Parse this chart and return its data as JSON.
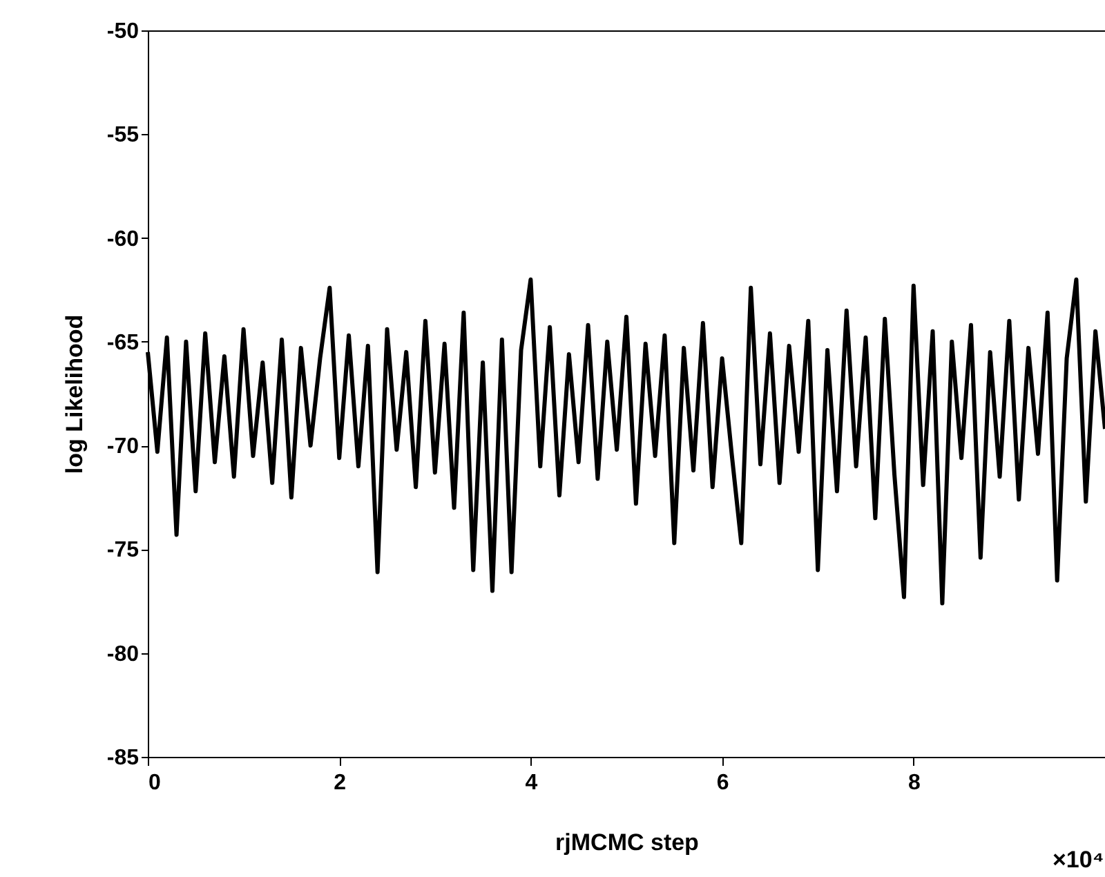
{
  "chart_data": {
    "type": "line",
    "xlabel": "rjMCMC step",
    "ylabel": "log Likelihood",
    "annotations": [
      "×10⁴"
    ],
    "x": [
      0,
      0.1,
      0.2,
      0.3,
      0.4,
      0.5,
      0.6,
      0.7,
      0.8,
      0.9,
      1.0,
      1.1,
      1.2,
      1.3,
      1.4,
      1.5,
      1.6,
      1.7,
      1.8,
      1.9,
      2.0,
      2.1,
      2.2,
      2.3,
      2.4,
      2.5,
      2.6,
      2.7,
      2.8,
      2.9,
      3.0,
      3.1,
      3.2,
      3.3,
      3.4,
      3.5,
      3.6,
      3.7,
      3.8,
      3.9,
      4.0,
      4.1,
      4.2,
      4.3,
      4.4,
      4.5,
      4.6,
      4.7,
      4.8,
      4.9,
      5.0,
      5.1,
      5.2,
      5.3,
      5.4,
      5.5,
      5.6,
      5.7,
      5.8,
      5.9,
      6.0,
      6.1,
      6.2,
      6.3,
      6.4,
      6.5,
      6.6,
      6.7,
      6.8,
      6.9,
      7.0,
      7.1,
      7.2,
      7.3,
      7.4,
      7.5,
      7.6,
      7.7,
      7.8,
      7.9,
      8.0,
      8.1,
      8.2,
      8.3,
      8.4,
      8.5,
      8.6,
      8.7,
      8.8,
      8.9,
      9.0,
      9.1,
      9.2,
      9.3,
      9.4,
      9.5,
      9.6,
      9.7,
      9.8,
      9.9,
      10.0
    ],
    "series": [
      {
        "color": "#000000",
        "values": [
          -65.5,
          -70.3,
          -64.8,
          -74.3,
          -65.0,
          -72.2,
          -64.6,
          -70.8,
          -65.7,
          -71.5,
          -64.4,
          -70.5,
          -66.0,
          -71.8,
          -64.9,
          -72.5,
          -65.3,
          -70.0,
          -65.8,
          -62.4,
          -70.6,
          -64.7,
          -71.0,
          -65.2,
          -76.1,
          -64.4,
          -70.2,
          -65.5,
          -72.0,
          -64.0,
          -71.3,
          -65.1,
          -73.0,
          -63.6,
          -76.0,
          -66.0,
          -77.0,
          -64.9,
          -76.1,
          -65.4,
          -62.0,
          -71.0,
          -64.3,
          -72.4,
          -65.6,
          -70.8,
          -64.2,
          -71.6,
          -65.0,
          -70.2,
          -63.8,
          -72.8,
          -65.1,
          -70.5,
          -64.7,
          -74.7,
          -65.3,
          -71.2,
          -64.1,
          -72.0,
          -65.8,
          -70.4,
          -74.7,
          -62.4,
          -70.9,
          -64.6,
          -71.8,
          -65.2,
          -70.3,
          -64.0,
          -76.0,
          -65.4,
          -72.2,
          -63.5,
          -71.0,
          -64.8,
          -73.5,
          -63.9,
          -71.4,
          -77.3,
          -62.3,
          -71.9,
          -64.5,
          -77.6,
          -65.0,
          -70.6,
          -64.2,
          -75.4,
          -65.5,
          -71.5,
          -64.0,
          -72.6,
          -65.3,
          -70.4,
          -63.6,
          -76.5,
          -65.8,
          -62.0,
          -72.7,
          -64.5,
          -69.2
        ]
      }
    ],
    "xlim": [
      0,
      10
    ],
    "xticks": [
      0,
      2,
      4,
      6,
      8
    ],
    "ylim": [
      -85,
      -50
    ],
    "yticks": [
      -85,
      -80,
      -75,
      -70,
      -65,
      -60,
      -55,
      -50
    ],
    "grid": false,
    "marker": "none",
    "line_style": "solid"
  }
}
